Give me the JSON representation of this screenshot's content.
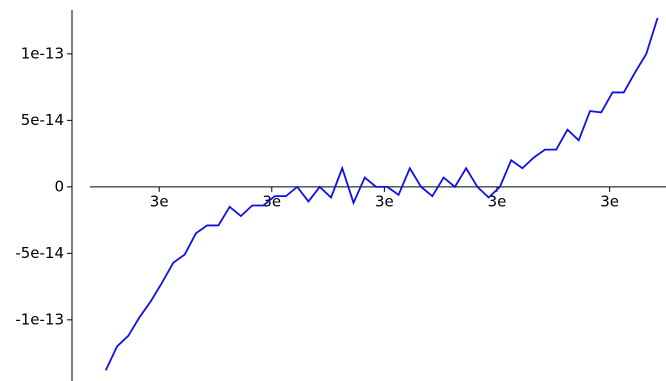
{
  "chart_data": {
    "type": "line",
    "x": [
      8.154796,
      8.154798,
      8.1548,
      8.154802,
      8.154804,
      8.154806,
      8.154808,
      8.15481,
      8.154812,
      8.154814,
      8.154816,
      8.154818,
      8.15482,
      8.154822,
      8.154824,
      8.154826,
      8.154828,
      8.15483,
      8.154832,
      8.154834,
      8.154836,
      8.154838,
      8.15484,
      8.154842,
      8.154844,
      8.154846,
      8.154848,
      8.15485,
      8.154852,
      8.154854,
      8.154856,
      8.154858,
      8.15486,
      8.154862,
      8.154864,
      8.154866,
      8.154868,
      8.15487,
      8.154872,
      8.154874,
      8.154876,
      8.154878,
      8.15488,
      8.154882,
      8.154884,
      8.154886,
      8.154888,
      8.15489,
      8.154892,
      8.154894
    ],
    "series": [
      {
        "color": "#1010e8",
        "values": [
          -1.38e-13,
          -1.2e-13,
          -1.12e-13,
          -9.8e-14,
          -8.6e-14,
          -7.2e-14,
          -5.7e-14,
          -5.1e-14,
          -3.5e-14,
          -2.9e-14,
          -2.9e-14,
          -1.5e-14,
          -2.2e-14,
          -1.4e-14,
          -1.4e-14,
          -7e-15,
          -7e-15,
          0,
          -1.1e-14,
          0,
          -8e-15,
          1.4e-14,
          -1.2e-14,
          7e-15,
          0,
          0,
          -6e-15,
          1.4e-14,
          0,
          -7e-15,
          7e-15,
          0,
          1.4e-14,
          0,
          -8e-15,
          0,
          2e-14,
          1.4e-14,
          2.2e-14,
          2.8e-14,
          2.8e-14,
          4.3e-14,
          3.5e-14,
          5.7e-14,
          5.6e-14,
          7.1e-14,
          7.1e-14,
          8.6e-14,
          1e-13,
          1.27e-13
        ]
      }
    ],
    "xlim": [
      8.15479,
      8.1548955
    ],
    "ylim": [
      -1.46e-13,
      1.33e-13
    ],
    "xticks": [
      {
        "value": 8.154805485377135,
        "label": "3e"
      },
      {
        "value": 8.154825485377136,
        "label": "3e"
      },
      {
        "value": 8.154845485377136,
        "label": "3e"
      },
      {
        "value": 8.154865485377137,
        "label": "3e"
      },
      {
        "value": 8.154885485377136,
        "label": "3e"
      }
    ],
    "yticks": [
      -1e-13,
      -5e-14,
      0,
      5e-14,
      1e-13
    ]
  }
}
